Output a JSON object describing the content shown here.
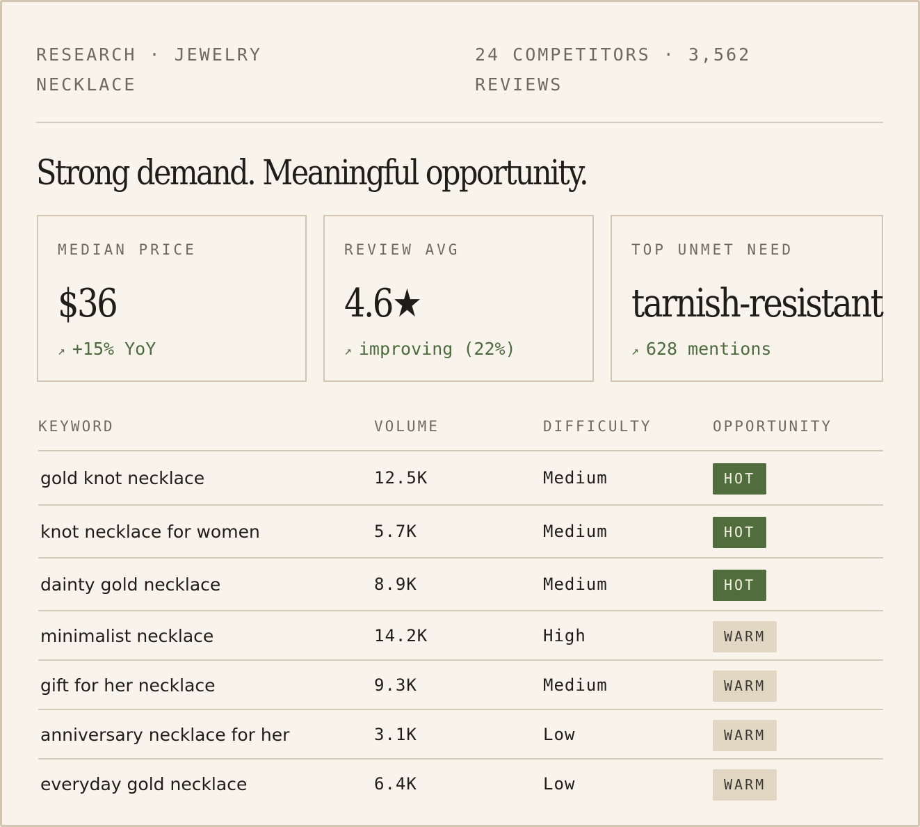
{
  "header": {
    "left": "RESEARCH · JEWELRY NECKLACE",
    "right": "24 COMPETITORS · 3,562 REVIEWS"
  },
  "headline": "Strong demand. Meaningful opportunity.",
  "cards": [
    {
      "label": "MEDIAN PRICE",
      "value": "$36",
      "trend_icon": "arrow-up-right-icon",
      "trend": "+15% YoY"
    },
    {
      "label": "REVIEW AVG",
      "value": "4.6★",
      "trend_icon": "arrow-up-right-icon",
      "trend": "improving (22%)"
    },
    {
      "label": "TOP UNMET NEED",
      "value": "tarnish-resistant",
      "trend_icon": "arrow-up-right-icon",
      "trend": "628 mentions"
    }
  ],
  "table": {
    "columns": [
      "KEYWORD",
      "VOLUME",
      "DIFFICULTY",
      "OPPORTUNITY"
    ],
    "rows": [
      {
        "keyword": "gold knot necklace",
        "volume": "12.5K",
        "difficulty": "Medium",
        "opportunity": "HOT"
      },
      {
        "keyword": "knot necklace for women",
        "volume": "5.7K",
        "difficulty": "Medium",
        "opportunity": "HOT"
      },
      {
        "keyword": "dainty gold necklace",
        "volume": "8.9K",
        "difficulty": "Medium",
        "opportunity": "HOT"
      },
      {
        "keyword": "minimalist necklace",
        "volume": "14.2K",
        "difficulty": "High",
        "opportunity": "WARM"
      },
      {
        "keyword": "gift for her necklace",
        "volume": "9.3K",
        "difficulty": "Medium",
        "opportunity": "WARM"
      },
      {
        "keyword": "anniversary necklace for her",
        "volume": "3.1K",
        "difficulty": "Low",
        "opportunity": "WARM"
      },
      {
        "keyword": "everyday gold necklace",
        "volume": "6.4K",
        "difficulty": "Low",
        "opportunity": "WARM"
      }
    ]
  },
  "colors": {
    "background": "#f8f4ec",
    "accent_green": "#4f6e3c",
    "warm_badge": "#e2d7c2",
    "border": "#d2c5b1"
  }
}
